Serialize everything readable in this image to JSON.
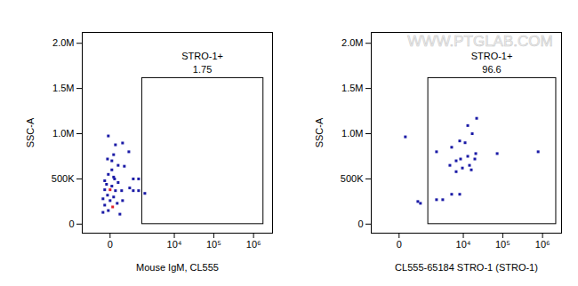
{
  "chart_data": [
    {
      "type": "scatter",
      "log": "x",
      "marker": "square",
      "x_label": "Mouse IgM, CL555",
      "y_label": "SSC-A",
      "xlim": [
        -1000,
        3000000
      ],
      "ylim": [
        -100000,
        2120000
      ],
      "xticks": [
        0,
        {
          "value": 10000,
          "label": "10⁴"
        },
        {
          "value": 100000,
          "label": "10⁵"
        },
        {
          "value": 1000000,
          "label": "10⁶"
        }
      ],
      "yticks": [
        0,
        {
          "value": 500000,
          "label": "500K"
        },
        {
          "value": 1000000,
          "label": "1.0M"
        },
        {
          "value": 1500000,
          "label": "1.5M"
        },
        {
          "value": 2000000,
          "label": "2.0M"
        }
      ],
      "gate": {
        "label": "STRO-1+",
        "value": 1.75,
        "x": [
          1350,
          1770000
        ],
        "y": [
          0,
          1615000
        ]
      },
      "x": [
        -27,
        91,
        265,
        57,
        320,
        27,
        -27,
        57,
        -91,
        148,
        27,
        -91,
        0,
        91,
        238,
        527,
        705,
        1050,
        1615,
        1050,
        -40,
        57,
        -127,
        0,
        127,
        -91,
        40,
        -27,
        191,
        -57,
        27,
        148,
        -40,
        74,
        265,
        -127,
        705,
        490
      ],
      "y": [
        975000,
        877000,
        897000,
        768000,
        640000,
        600000,
        550000,
        520000,
        480000,
        460000,
        420000,
        380000,
        380000,
        370000,
        370000,
        400000,
        370000,
        370000,
        340000,
        500000,
        320000,
        300000,
        280000,
        260000,
        230000,
        210000,
        190000,
        150000,
        110000,
        440000,
        700000,
        650000,
        720000,
        500000,
        260000,
        130000,
        500000,
        800000
      ],
      "colors": [
        "#1a1aa6",
        "#1a1aa6",
        "#1a1aa6",
        "#1a1aa6",
        "#1a1aa6",
        "#1a1aa6",
        "#1a1aa6",
        "#1a1aa6",
        "#1a1aa6",
        "#1a1aa6",
        "#1a1aa6",
        "#1a1aa6",
        "#e0202a",
        "#1a1aa6",
        "#1a1aa6",
        "#1a1aa6",
        "#1a1aa6",
        "#1a1aa6",
        "#1a1aa6",
        "#1a1aa6",
        "#1a1aa6",
        "#1a1aa6",
        "#1a1aa6",
        "#1a1aa6",
        "#1a1aa6",
        "#1a1aa6",
        "#e0202a",
        "#1a1aa6",
        "#1a1aa6",
        "#1a1aa6",
        "#1a1aa6",
        "#1a1aa6",
        "#1a1aa6",
        "#1a1aa6",
        "#1a1aa6",
        "#1a1aa6",
        "#1a1aa6",
        "#1a1aa6"
      ]
    },
    {
      "type": "scatter",
      "log": "x",
      "marker": "square",
      "x_label": "CL555-65184 STRO-1 (STRO-1)",
      "y_label": "SSC-A",
      "watermark": "WWW.PTGLAB.COM",
      "xlim": [
        -1000,
        3000000
      ],
      "ylim": [
        -100000,
        2120000
      ],
      "xticks": [
        0,
        {
          "value": 10000,
          "label": "10⁴"
        },
        {
          "value": 100000,
          "label": "10⁵"
        },
        {
          "value": 1000000,
          "label": "10⁶"
        }
      ],
      "yticks": [
        0,
        {
          "value": 500000,
          "label": "500K"
        },
        {
          "value": 1000000,
          "label": "1.0M"
        },
        {
          "value": 1500000,
          "label": "1.5M"
        },
        {
          "value": 2000000,
          "label": "2.0M"
        }
      ],
      "gate": {
        "label": "STRO-1+",
        "value": 96.6,
        "x": [
          1100,
          2200000
        ],
        "y": [
          0,
          1615000
        ]
      },
      "x": [
        109,
        1928,
        4980,
        8070,
        13000,
        21900,
        16900,
        11100,
        8500,
        6520,
        4470,
        9470,
        14400,
        19700,
        13000,
        16000,
        6520,
        20800,
        72300,
        775000,
        1928,
        2870,
        4980,
        8070,
        490,
        610
      ],
      "y": [
        965000,
        800000,
        850000,
        920000,
        1090000,
        1170000,
        1000000,
        900000,
        720000,
        700000,
        650000,
        620000,
        650000,
        720000,
        750000,
        600000,
        580000,
        780000,
        780000,
        800000,
        270000,
        270000,
        330000,
        330000,
        250000,
        230000
      ],
      "colors": [
        "#1a1aa6",
        "#1a1aa6",
        "#1a1aa6",
        "#1a1aa6",
        "#1a1aa6",
        "#1a1aa6",
        "#1a1aa6",
        "#1a1aa6",
        "#1a1aa6",
        "#1a1aa6",
        "#1a1aa6",
        "#1a1aa6",
        "#1a1aa6",
        "#1a1aa6",
        "#1a1aa6",
        "#1a1aa6",
        "#1a1aa6",
        "#1a1aa6",
        "#1a1aa6",
        "#1a1aa6",
        "#1a1aa6",
        "#1a1aa6",
        "#1a1aa6",
        "#1a1aa6",
        "#1a1aa6",
        "#1a1aa6"
      ]
    }
  ]
}
